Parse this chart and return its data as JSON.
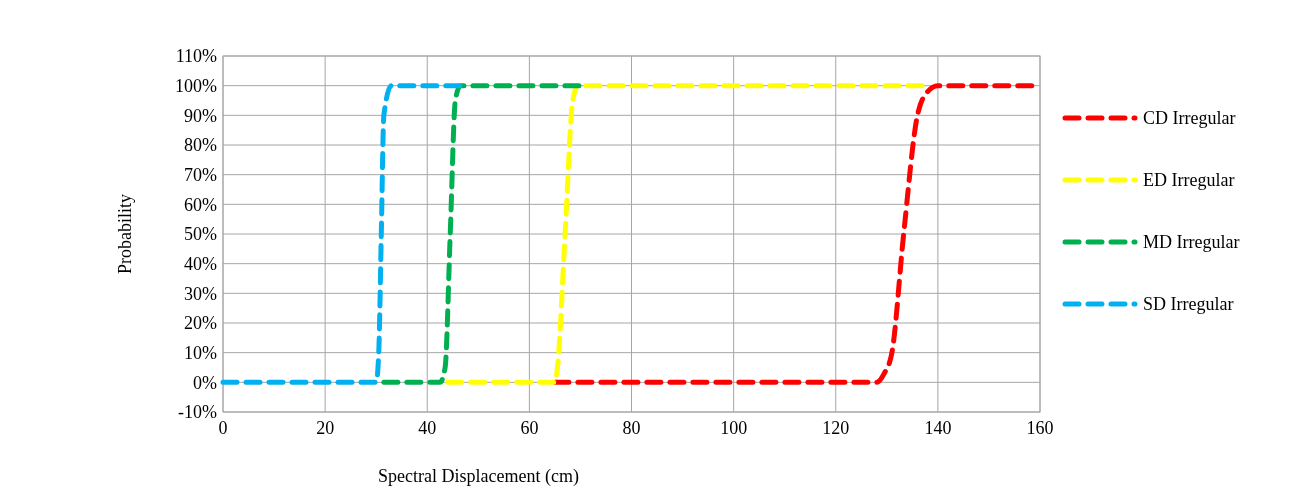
{
  "chart_data": {
    "type": "line",
    "xlabel": "Spectral Displacement (cm)",
    "ylabel": "Probability",
    "xlim": [
      0,
      160
    ],
    "xticks": [
      0,
      20,
      40,
      60,
      80,
      100,
      120,
      140,
      160
    ],
    "ylim": [
      -10,
      110
    ],
    "yticks": [
      {
        "value": -10,
        "label": "-10%"
      },
      {
        "value": 0,
        "label": "0%"
      },
      {
        "value": 10,
        "label": "10%"
      },
      {
        "value": 20,
        "label": "20%"
      },
      {
        "value": 30,
        "label": "30%"
      },
      {
        "value": 40,
        "label": "40%"
      },
      {
        "value": 50,
        "label": "50%"
      },
      {
        "value": 60,
        "label": "60%"
      },
      {
        "value": 70,
        "label": "70%"
      },
      {
        "value": 80,
        "label": "80%"
      },
      {
        "value": 90,
        "label": "90%"
      },
      {
        "value": 100,
        "label": "100%"
      },
      {
        "value": 110,
        "label": "110%"
      }
    ],
    "grid": true,
    "legend": "right",
    "line_style": "dashed",
    "series": [
      {
        "name": "CD Irregular",
        "color": "#ff0000",
        "x": [
          65,
          128,
          129.5,
          131,
          133.3,
          136,
          138,
          140,
          160
        ],
        "values": [
          0,
          0,
          3,
          10,
          50,
          90,
          98,
          100,
          100
        ]
      },
      {
        "name": "ED Irregular",
        "color": "#ffff00",
        "x": [
          44,
          65,
          65.5,
          67,
          68.5,
          69.5,
          137
        ],
        "values": [
          0,
          0,
          5,
          50,
          95,
          100,
          100
        ]
      },
      {
        "name": "MD Irregular",
        "color": "#00b050",
        "x": [
          31.5,
          42.5,
          43.5,
          44.5,
          45.5,
          46.5,
          70
        ],
        "values": [
          0,
          0,
          5,
          50,
          95,
          100,
          100
        ]
      },
      {
        "name": "SD Irregular",
        "color": "#00b0f0",
        "x": [
          0,
          30,
          30.5,
          31,
          31.5,
          33,
          47
        ],
        "values": [
          0,
          0,
          10,
          50,
          90,
          100,
          100
        ]
      }
    ]
  }
}
